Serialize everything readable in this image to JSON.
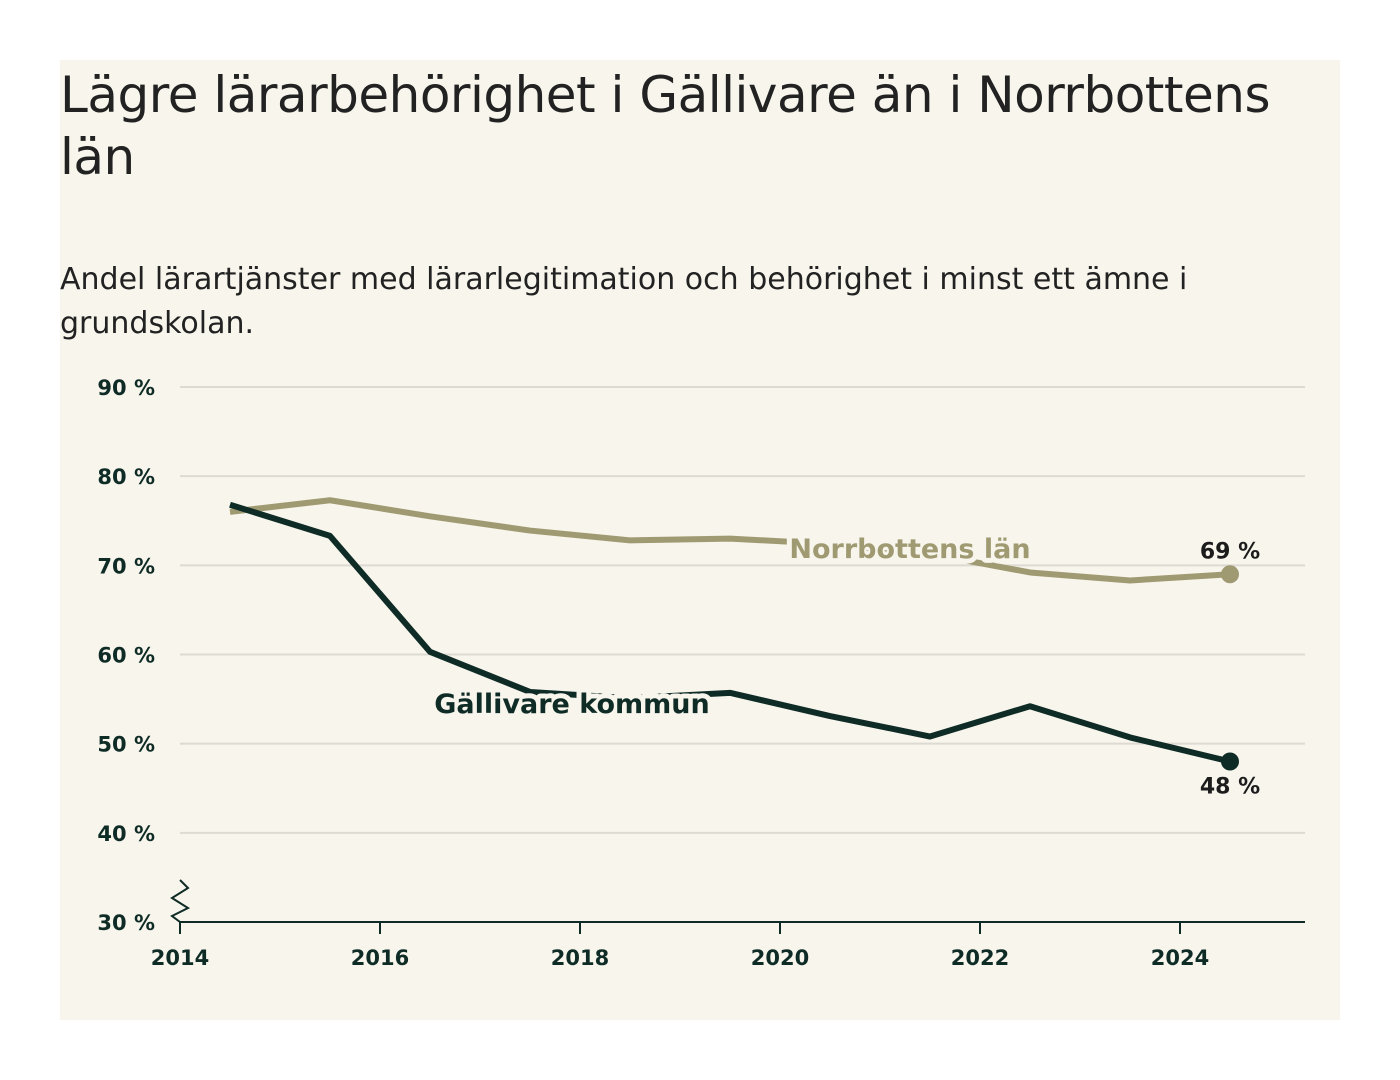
{
  "title": "Lägre lärarbehörighet i Gällivare än i Norrbottens län",
  "subtitle": "Andel lärartjänster med lärarlegitimation och behörighet i minst ett ämne i grundskolan.",
  "chart_data": {
    "type": "line",
    "x": [
      2014.5,
      2015.5,
      2016.5,
      2017.5,
      2018.5,
      2019.5,
      2020.5,
      2021.5,
      2022.5,
      2023.5,
      2024.5
    ],
    "series": [
      {
        "name": "Norrbottens län",
        "color": "#a09a72",
        "values": [
          76.0,
          77.3,
          75.5,
          73.9,
          72.8,
          73.0,
          72.4,
          71.3,
          69.2,
          68.3,
          69.0
        ],
        "end_label": "69 %"
      },
      {
        "name": "Gällivare kommun",
        "color": "#0f2b26",
        "values": [
          76.8,
          73.3,
          60.3,
          55.8,
          55.1,
          55.7,
          53.1,
          50.8,
          54.2,
          50.7,
          48.0
        ],
        "end_label": "48 %"
      }
    ],
    "x_ticks": [
      2014,
      2016,
      2018,
      2020,
      2022,
      2024
    ],
    "x_tick_labels": [
      "2014",
      "2016",
      "2018",
      "2020",
      "2022",
      "2024"
    ],
    "y_ticks": [
      30,
      40,
      50,
      60,
      70,
      80,
      90
    ],
    "y_tick_labels": [
      "30 %",
      "40 %",
      "50 %",
      "60 %",
      "70 %",
      "80 %",
      "90 %"
    ],
    "xlim": [
      2014,
      2025.25
    ],
    "ylim": [
      30,
      90
    ],
    "grid": true,
    "y_axis_break": true,
    "xlabel": "",
    "ylabel": ""
  }
}
